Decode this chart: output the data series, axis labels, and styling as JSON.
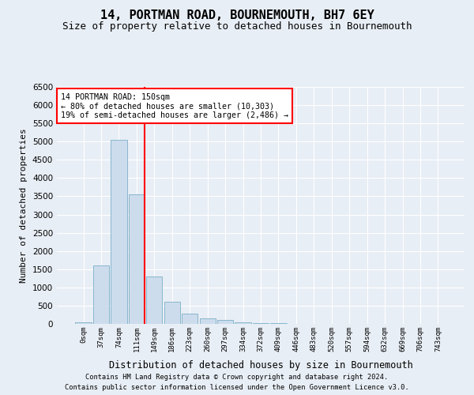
{
  "title": "14, PORTMAN ROAD, BOURNEMOUTH, BH7 6EY",
  "subtitle": "Size of property relative to detached houses in Bournemouth",
  "xlabel": "Distribution of detached houses by size in Bournemouth",
  "ylabel": "Number of detached properties",
  "footer_line1": "Contains HM Land Registry data © Crown copyright and database right 2024.",
  "footer_line2": "Contains public sector information licensed under the Open Government Licence v3.0.",
  "categories": [
    "0sqm",
    "37sqm",
    "74sqm",
    "111sqm",
    "149sqm",
    "186sqm",
    "223sqm",
    "260sqm",
    "297sqm",
    "334sqm",
    "372sqm",
    "409sqm",
    "446sqm",
    "483sqm",
    "520sqm",
    "557sqm",
    "594sqm",
    "632sqm",
    "669sqm",
    "706sqm",
    "743sqm"
  ],
  "values": [
    50,
    1600,
    5050,
    3550,
    1300,
    600,
    275,
    150,
    100,
    50,
    30,
    15,
    10,
    5,
    3,
    2,
    1,
    1,
    0,
    0,
    0
  ],
  "bar_color": "#ccdcec",
  "bar_edge_color": "#7aafc8",
  "ylim": [
    0,
    6500
  ],
  "yticks": [
    0,
    500,
    1000,
    1500,
    2000,
    2500,
    3000,
    3500,
    4000,
    4500,
    5000,
    5500,
    6000,
    6500
  ],
  "vline_bin": 3,
  "annotation_line0": "14 PORTMAN ROAD: 150sqm",
  "annotation_line1": "← 80% of detached houses are smaller (10,303)",
  "annotation_line2": "19% of semi-detached houses are larger (2,486) →",
  "annotation_box_color": "white",
  "annotation_box_edge_color": "red",
  "vline_color": "red",
  "background_color": "#e8eef5",
  "grid_color": "white",
  "title_fontsize": 11,
  "subtitle_fontsize": 9
}
